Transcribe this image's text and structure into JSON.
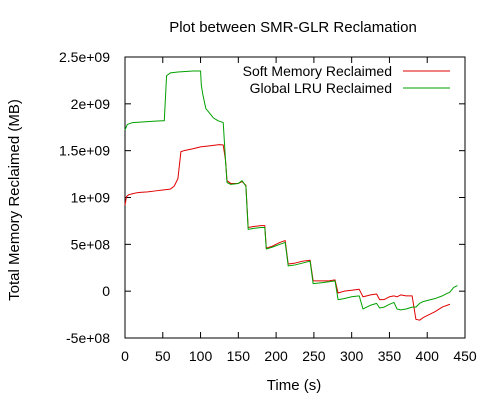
{
  "chart_data": {
    "type": "line",
    "title": "Plot between SMR-GLR Reclamation",
    "xlabel": "Time (s)",
    "ylabel": "Total Memory Reclaimed (MB)",
    "xlim": [
      0,
      450
    ],
    "ylim": [
      -500000000,
      2500000000
    ],
    "x_ticks": [
      0,
      50,
      100,
      150,
      200,
      250,
      300,
      350,
      400,
      450
    ],
    "x_tick_labels": [
      "0",
      "50",
      "100",
      "150",
      "200",
      "250",
      "300",
      "350",
      "400",
      "450"
    ],
    "y_ticks": [
      -500000000,
      0,
      500000000,
      1000000000,
      1500000000,
      2000000000,
      2500000000
    ],
    "y_tick_labels": [
      "-5e+08",
      "0",
      "5e+08",
      "1e+09",
      "1.5e+09",
      "2e+09",
      "2.5e+09"
    ],
    "grid": false,
    "legend_position": "top-right",
    "series": [
      {
        "name": "Soft Memory Reclaimed",
        "color": "#e00000",
        "points": [
          [
            0,
            920000000
          ],
          [
            2,
            1010000000
          ],
          [
            5,
            1030000000
          ],
          [
            10,
            1040000000
          ],
          [
            15,
            1050000000
          ],
          [
            20,
            1055000000
          ],
          [
            30,
            1060000000
          ],
          [
            40,
            1070000000
          ],
          [
            50,
            1080000000
          ],
          [
            60,
            1090000000
          ],
          [
            65,
            1120000000
          ],
          [
            70,
            1200000000
          ],
          [
            74,
            1490000000
          ],
          [
            78,
            1500000000
          ],
          [
            90,
            1520000000
          ],
          [
            100,
            1540000000
          ],
          [
            110,
            1550000000
          ],
          [
            125,
            1565000000
          ],
          [
            130,
            1560000000
          ],
          [
            133,
            1400000000
          ],
          [
            135,
            1180000000
          ],
          [
            140,
            1150000000
          ],
          [
            150,
            1150000000
          ],
          [
            155,
            1170000000
          ],
          [
            160,
            1130000000
          ],
          [
            163,
            680000000
          ],
          [
            170,
            690000000
          ],
          [
            180,
            700000000
          ],
          [
            185,
            700000000
          ],
          [
            187,
            460000000
          ],
          [
            195,
            480000000
          ],
          [
            205,
            520000000
          ],
          [
            212,
            540000000
          ],
          [
            216,
            290000000
          ],
          [
            225,
            300000000
          ],
          [
            235,
            320000000
          ],
          [
            245,
            330000000
          ],
          [
            249,
            110000000
          ],
          [
            260,
            110000000
          ],
          [
            270,
            110000000
          ],
          [
            278,
            120000000
          ],
          [
            282,
            -20000000
          ],
          [
            290,
            0
          ],
          [
            300,
            10000000
          ],
          [
            310,
            20000000
          ],
          [
            315,
            -60000000
          ],
          [
            320,
            -50000000
          ],
          [
            325,
            -40000000
          ],
          [
            333,
            -30000000
          ],
          [
            337,
            -90000000
          ],
          [
            343,
            -90000000
          ],
          [
            350,
            -60000000
          ],
          [
            356,
            -50000000
          ],
          [
            360,
            -60000000
          ],
          [
            365,
            -40000000
          ],
          [
            372,
            -50000000
          ],
          [
            380,
            -50000000
          ],
          [
            385,
            -300000000
          ],
          [
            390,
            -310000000
          ],
          [
            395,
            -280000000
          ],
          [
            400,
            -260000000
          ],
          [
            410,
            -220000000
          ],
          [
            420,
            -170000000
          ],
          [
            430,
            -140000000
          ]
        ]
      },
      {
        "name": "Global LRU Reclaimed",
        "color": "#00a000",
        "points": [
          [
            0,
            1720000000
          ],
          [
            3,
            1780000000
          ],
          [
            10,
            1800000000
          ],
          [
            20,
            1805000000
          ],
          [
            30,
            1810000000
          ],
          [
            40,
            1815000000
          ],
          [
            50,
            1820000000
          ],
          [
            52,
            1820000000
          ],
          [
            55,
            2300000000
          ],
          [
            60,
            2330000000
          ],
          [
            70,
            2340000000
          ],
          [
            80,
            2345000000
          ],
          [
            90,
            2350000000
          ],
          [
            100,
            2350000000
          ],
          [
            101,
            2200000000
          ],
          [
            103,
            2100000000
          ],
          [
            107,
            1950000000
          ],
          [
            112,
            1900000000
          ],
          [
            117,
            1850000000
          ],
          [
            123,
            1820000000
          ],
          [
            130,
            1800000000
          ],
          [
            133,
            1400000000
          ],
          [
            135,
            1160000000
          ],
          [
            140,
            1140000000
          ],
          [
            150,
            1150000000
          ],
          [
            155,
            1180000000
          ],
          [
            160,
            1120000000
          ],
          [
            163,
            660000000
          ],
          [
            170,
            670000000
          ],
          [
            180,
            680000000
          ],
          [
            185,
            680000000
          ],
          [
            187,
            450000000
          ],
          [
            195,
            470000000
          ],
          [
            205,
            500000000
          ],
          [
            212,
            520000000
          ],
          [
            216,
            270000000
          ],
          [
            225,
            280000000
          ],
          [
            235,
            300000000
          ],
          [
            245,
            320000000
          ],
          [
            249,
            80000000
          ],
          [
            260,
            90000000
          ],
          [
            270,
            100000000
          ],
          [
            278,
            110000000
          ],
          [
            282,
            -90000000
          ],
          [
            290,
            -80000000
          ],
          [
            300,
            -60000000
          ],
          [
            310,
            -50000000
          ],
          [
            315,
            -190000000
          ],
          [
            320,
            -170000000
          ],
          [
            325,
            -150000000
          ],
          [
            333,
            -130000000
          ],
          [
            337,
            -180000000
          ],
          [
            343,
            -170000000
          ],
          [
            350,
            -140000000
          ],
          [
            356,
            -120000000
          ],
          [
            360,
            -190000000
          ],
          [
            365,
            -200000000
          ],
          [
            372,
            -190000000
          ],
          [
            380,
            -170000000
          ],
          [
            385,
            -170000000
          ],
          [
            390,
            -130000000
          ],
          [
            395,
            -110000000
          ],
          [
            400,
            -100000000
          ],
          [
            410,
            -80000000
          ],
          [
            420,
            -50000000
          ],
          [
            430,
            -10000000
          ],
          [
            435,
            40000000
          ],
          [
            440,
            60000000
          ]
        ]
      }
    ]
  }
}
